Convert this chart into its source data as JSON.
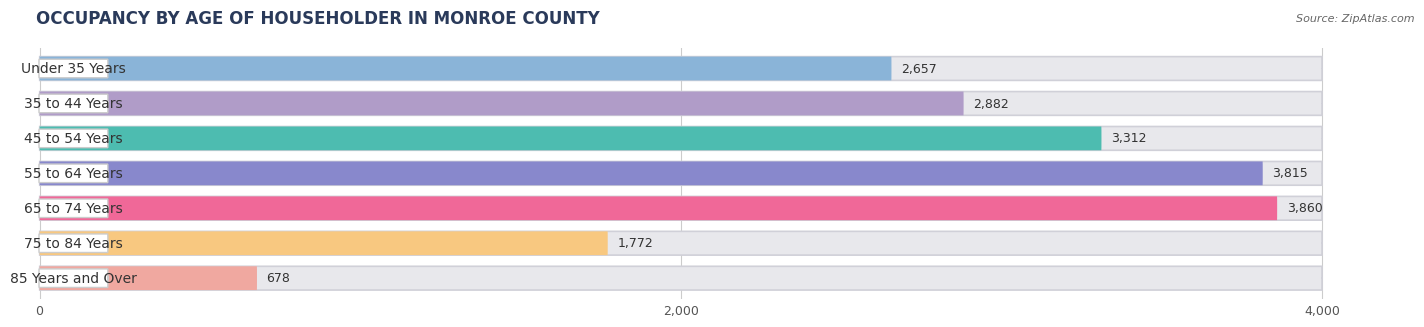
{
  "title": "OCCUPANCY BY AGE OF HOUSEHOLDER IN MONROE COUNTY",
  "source": "Source: ZipAtlas.com",
  "categories": [
    "Under 35 Years",
    "35 to 44 Years",
    "45 to 54 Years",
    "55 to 64 Years",
    "65 to 74 Years",
    "75 to 84 Years",
    "85 Years and Over"
  ],
  "values": [
    2657,
    2882,
    3312,
    3815,
    3860,
    1772,
    678
  ],
  "bar_colors": [
    "#8ab4d8",
    "#b09cc8",
    "#4dbcb0",
    "#8888cc",
    "#f06898",
    "#f8c880",
    "#f0a8a0"
  ],
  "data_max": 4000,
  "xticks": [
    0,
    2000,
    4000
  ],
  "background_color": "#ffffff",
  "bar_bg_color": "#e8e8ec",
  "title_fontsize": 12,
  "label_fontsize": 10,
  "value_fontsize": 9,
  "title_color": "#2a3a5a",
  "label_color": "#333333",
  "value_color": "#333333",
  "source_color": "#666666"
}
